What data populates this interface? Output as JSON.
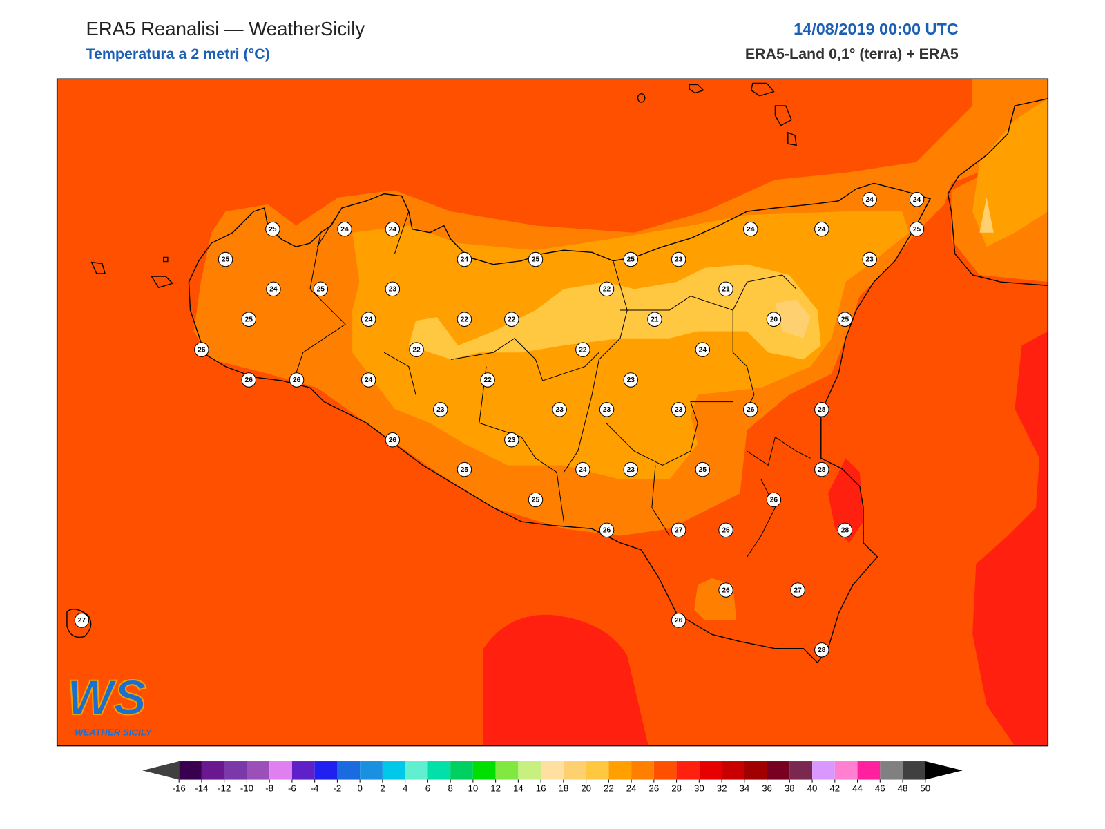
{
  "header": {
    "title": "ERA5 Reanalisi — WeatherSicily",
    "subtitle": "Temperatura a 2 metri (°C)",
    "datetime": "14/08/2019 00:00 UTC",
    "source": "ERA5-Land 0,1° (terra) + ERA5"
  },
  "map": {
    "stations": [
      25,
      24,
      24,
      25,
      24,
      25,
      23,
      24,
      25,
      25,
      23,
      24,
      24,
      24,
      24,
      25,
      23,
      25,
      24,
      22,
      22,
      22,
      21,
      21,
      20,
      25,
      26,
      22,
      22,
      24,
      26,
      26,
      24,
      22,
      23,
      23,
      23,
      23,
      23,
      26,
      28,
      26,
      23,
      25,
      24,
      23,
      25,
      28,
      26,
      25,
      26,
      27,
      26,
      28,
      26,
      27,
      26,
      28,
      27
    ]
  },
  "logo": {
    "mark": "WS",
    "text": "WEATHER SICILY"
  },
  "colorbar": {
    "ticks": [
      -16,
      -14,
      -12,
      -10,
      -8,
      -6,
      -4,
      -2,
      0,
      2,
      4,
      6,
      8,
      10,
      12,
      14,
      16,
      18,
      20,
      22,
      24,
      26,
      28,
      30,
      32,
      34,
      36,
      38,
      40,
      42,
      44,
      46,
      48,
      50
    ],
    "colors": [
      "#3a0050",
      "#6a1890",
      "#7a38a8",
      "#9a50b8",
      "#e080f0",
      "#6020c8",
      "#2020f0",
      "#1a6ae0",
      "#1a90e0",
      "#00c8e8",
      "#60f0d0",
      "#00e0a8",
      "#00d060",
      "#00e000",
      "#80e840",
      "#c8f080",
      "#ffe0a0",
      "#ffd070",
      "#ffc840",
      "#ffa000",
      "#ff8000",
      "#ff5000",
      "#ff2010",
      "#e60000",
      "#c80000",
      "#a00000",
      "#780020",
      "#7a2850",
      "#d898ff",
      "#ff80d0",
      "#ff20a0",
      "#808080",
      "#404040"
    ],
    "under_color": "#404040",
    "over_color": "#000000"
  }
}
